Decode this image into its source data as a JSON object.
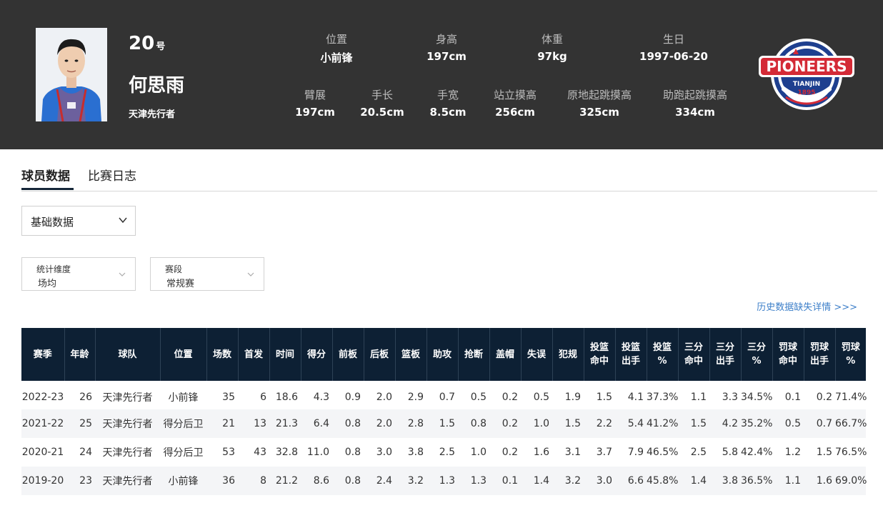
{
  "player": {
    "number": "20",
    "number_suffix": "号",
    "name": "何思雨",
    "team": "天津先行者"
  },
  "profile_stats": [
    {
      "label": "位置",
      "value": "小前锋"
    },
    {
      "label": "身高",
      "value": "197cm"
    },
    {
      "label": "体重",
      "value": "97kg"
    },
    {
      "label": "生日",
      "value": "1997-06-20"
    },
    {
      "label": "臂展",
      "value": "197cm"
    },
    {
      "label": "手长",
      "value": "20.5cm"
    },
    {
      "label": "手宽",
      "value": "8.5cm"
    },
    {
      "label": "站立摸高",
      "value": "256cm"
    },
    {
      "label": "原地起跳摸高",
      "value": "325cm"
    },
    {
      "label": "助跑起跳摸高",
      "value": "334cm"
    }
  ],
  "logo": {
    "text": "PIONEERS",
    "city": "TIANJIN",
    "year": "1895"
  },
  "tabs": [
    {
      "label": "球员数据",
      "active": true
    },
    {
      "label": "比赛日志",
      "active": false
    }
  ],
  "stat_type_select": {
    "value": "基础数据"
  },
  "filters": [
    {
      "label": "统计维度",
      "value": "场均"
    },
    {
      "label": "赛段",
      "value": "常规赛"
    }
  ],
  "history_link": "历史数据缺失详情 >>>",
  "table": {
    "headers": [
      [
        "赛季"
      ],
      [
        "年龄"
      ],
      [
        "球队"
      ],
      [
        "位置"
      ],
      [
        "场数"
      ],
      [
        "首发"
      ],
      [
        "时间"
      ],
      [
        "得分"
      ],
      [
        "前板"
      ],
      [
        "后板"
      ],
      [
        "篮板"
      ],
      [
        "助攻"
      ],
      [
        "抢断"
      ],
      [
        "盖帽"
      ],
      [
        "失误"
      ],
      [
        "犯规"
      ],
      [
        "投篮",
        "命中"
      ],
      [
        "投篮",
        "出手"
      ],
      [
        "投篮",
        "%"
      ],
      [
        "三分",
        "命中"
      ],
      [
        "三分",
        "出手"
      ],
      [
        "三分",
        "%"
      ],
      [
        "罚球",
        "命中"
      ],
      [
        "罚球",
        "出手"
      ],
      [
        "罚球",
        "%"
      ]
    ],
    "rows": [
      [
        "2022-23",
        "26",
        "天津先行者",
        "小前锋",
        "35",
        "6",
        "18.6",
        "4.3",
        "0.9",
        "2.0",
        "2.9",
        "0.7",
        "0.5",
        "0.2",
        "0.5",
        "1.9",
        "1.5",
        "4.1",
        "37.3%",
        "1.1",
        "3.3",
        "34.5%",
        "0.1",
        "0.2",
        "71.4%"
      ],
      [
        "2021-22",
        "25",
        "天津先行者",
        "得分后卫",
        "21",
        "13",
        "21.3",
        "6.4",
        "0.8",
        "2.0",
        "2.8",
        "1.5",
        "0.8",
        "0.2",
        "1.0",
        "1.5",
        "2.2",
        "5.4",
        "41.2%",
        "1.5",
        "4.2",
        "35.2%",
        "0.5",
        "0.7",
        "66.7%"
      ],
      [
        "2020-21",
        "24",
        "天津先行者",
        "得分后卫",
        "53",
        "43",
        "32.8",
        "11.0",
        "0.8",
        "3.0",
        "3.8",
        "2.5",
        "1.0",
        "0.2",
        "1.6",
        "3.1",
        "3.7",
        "7.9",
        "46.5%",
        "2.5",
        "5.8",
        "42.4%",
        "1.2",
        "1.5",
        "76.5%"
      ],
      [
        "2019-20",
        "23",
        "天津先行者",
        "小前锋",
        "36",
        "8",
        "21.2",
        "8.6",
        "0.8",
        "2.4",
        "3.2",
        "1.3",
        "1.3",
        "0.1",
        "1.4",
        "3.2",
        "3.0",
        "6.6",
        "45.8%",
        "1.4",
        "3.8",
        "36.5%",
        "1.1",
        "1.6",
        "69.0%"
      ]
    ]
  },
  "colors": {
    "header_bg": "#333333",
    "table_header_bg": "#0d2034",
    "link": "#3d7fc9",
    "logo_blue": "#1e3f8f",
    "logo_red": "#d42a36"
  }
}
